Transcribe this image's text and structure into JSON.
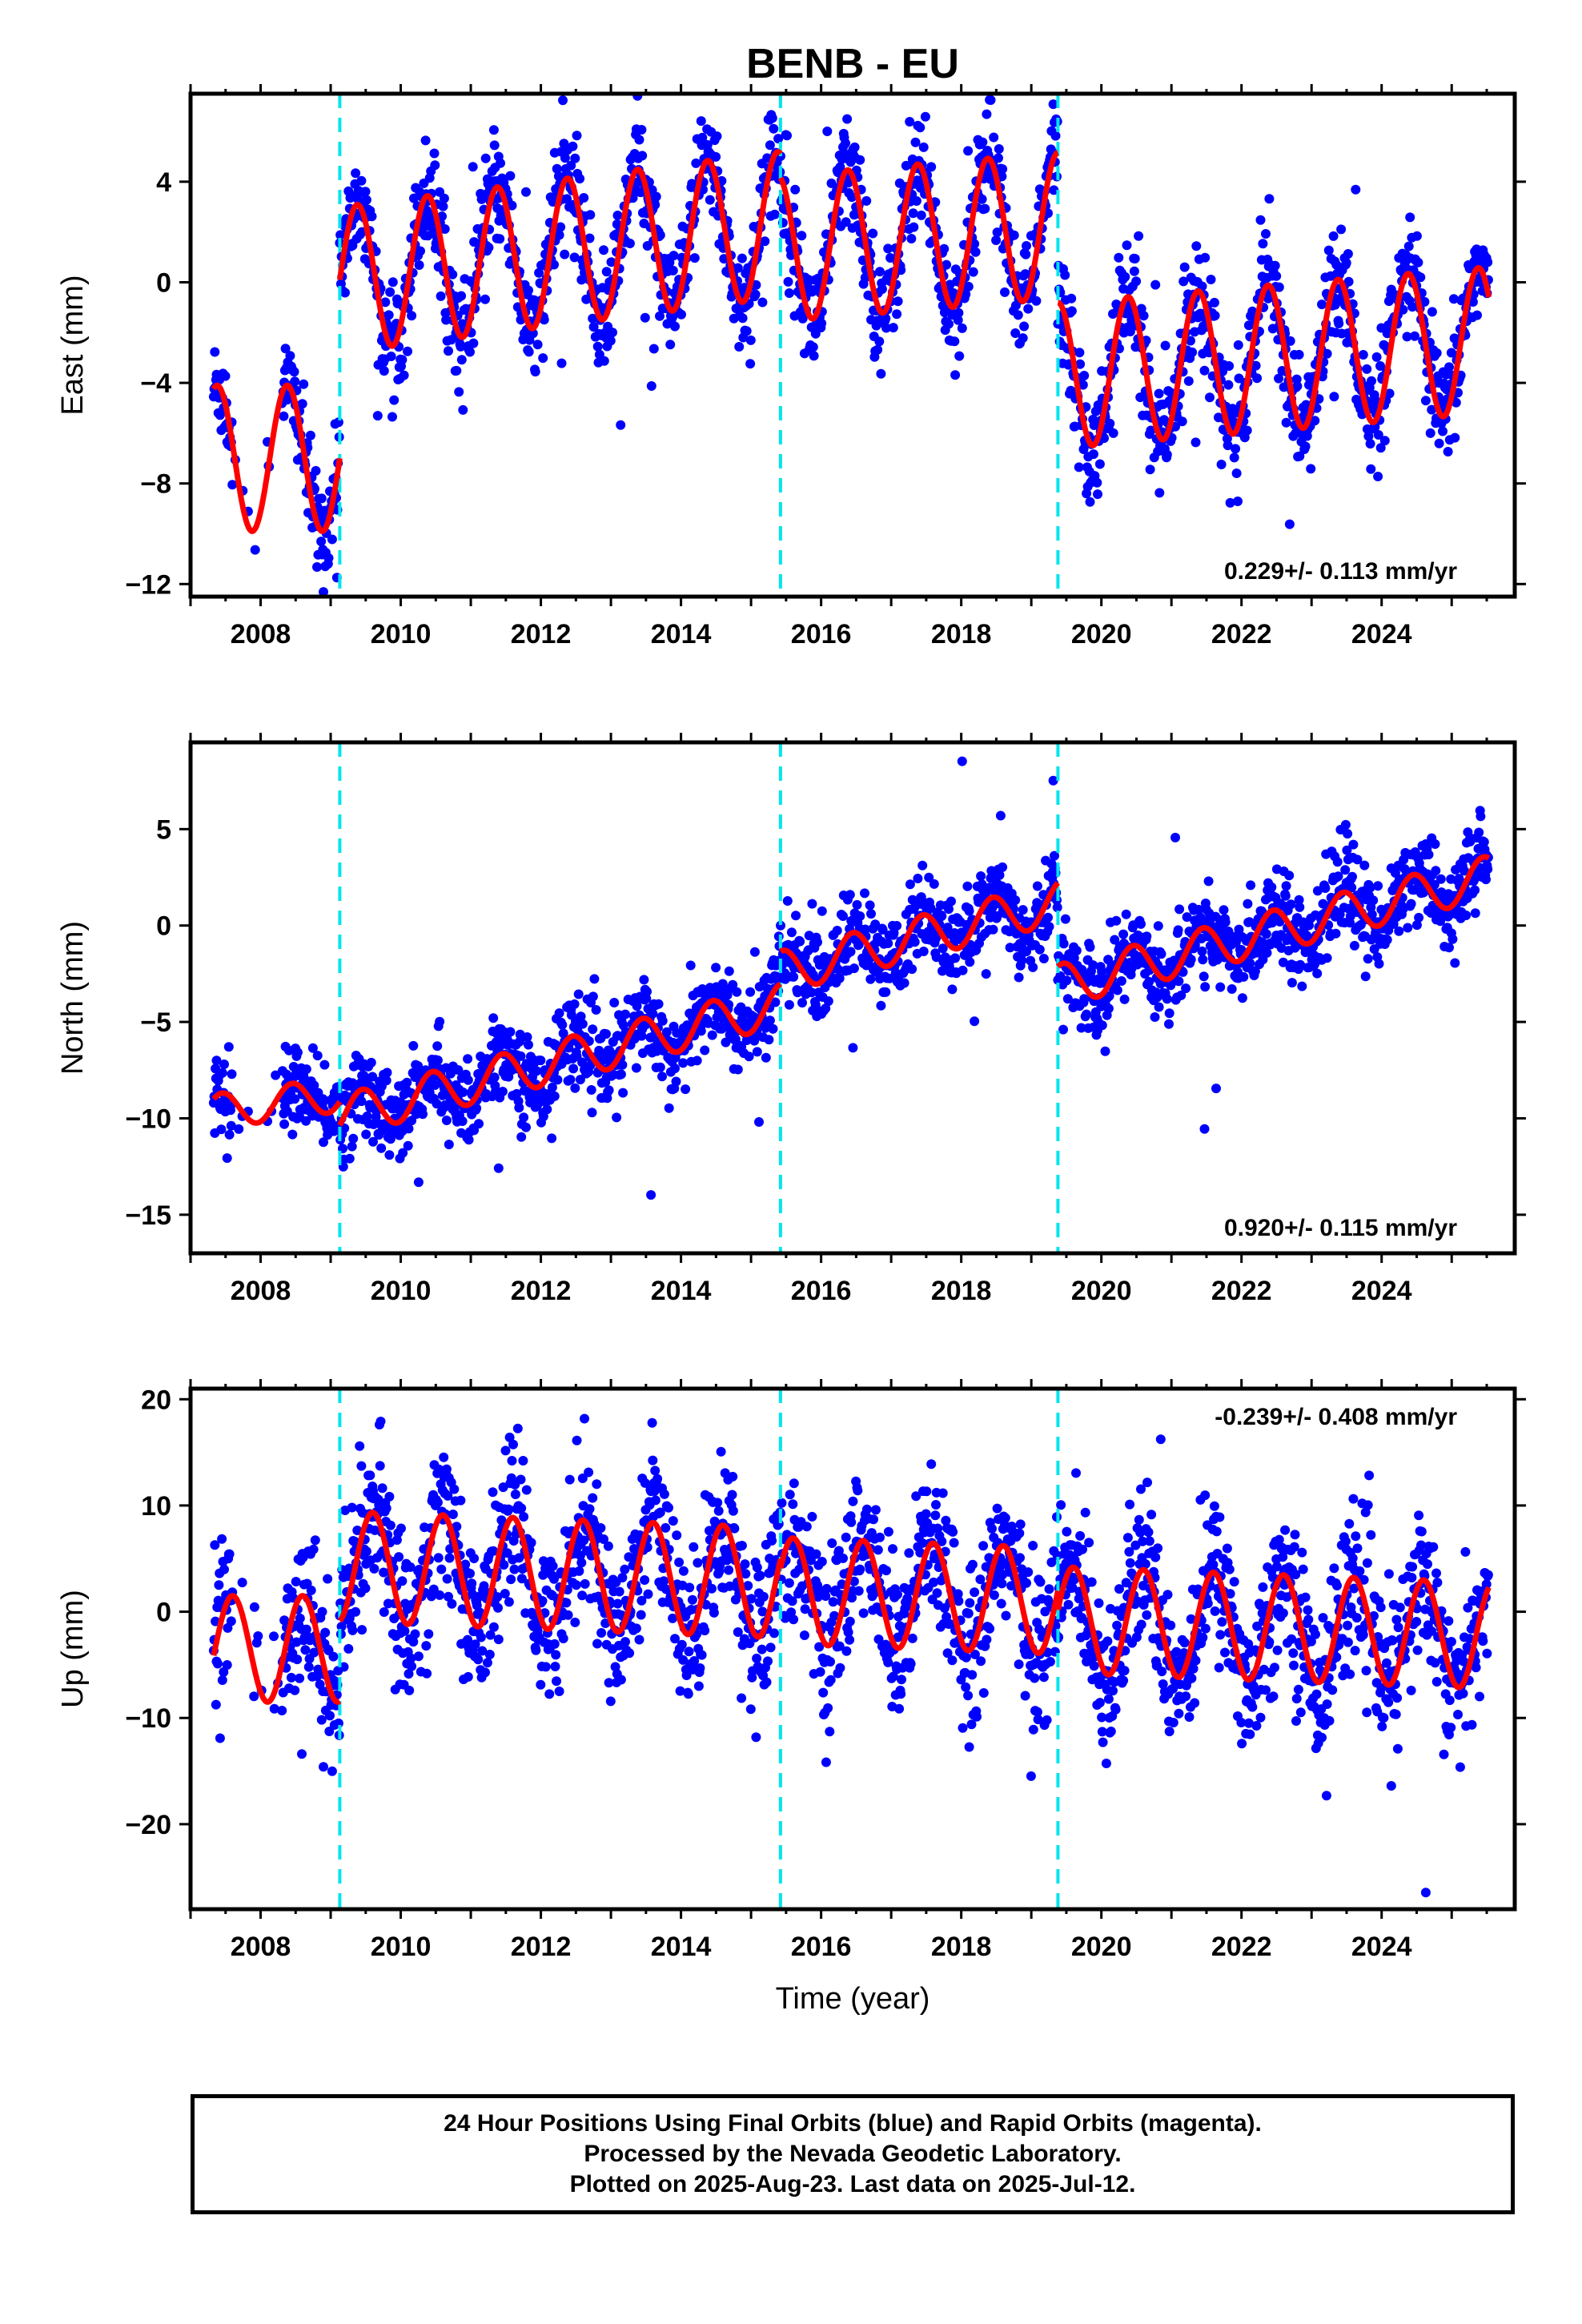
{
  "title": "BENB - EU",
  "colors": {
    "data_points": "#0000ff",
    "model_fit": "#ff0000",
    "offsets": "#00e5ee",
    "frame": "#000000"
  },
  "xaxis": {
    "label": "Time (year)",
    "range": [
      2007.0,
      2025.9
    ],
    "ticks": [
      "2008",
      "2010",
      "2012",
      "2014",
      "2016",
      "2018",
      "2020",
      "2022",
      "2024"
    ]
  },
  "offset_dates": [
    2009.13,
    2015.42,
    2019.38
  ],
  "caption": {
    "lines": [
      "24 Hour Positions Using Final Orbits (blue) and Rapid Orbits (magenta).",
      "Processed by the Nevada Geodetic Laboratory.",
      "Plotted on 2025-Aug-23. Last data on 2025-Jul-12."
    ]
  },
  "chart_data": [
    {
      "type": "scatter",
      "component": "east",
      "ylabel": "East (mm)",
      "ylim": [
        -12.5,
        7.5
      ],
      "yticks": [
        -12,
        -8,
        -4,
        0,
        4
      ],
      "ytick_labels": [
        "−12",
        "−8",
        "−4",
        "0",
        "4"
      ],
      "rate_text": "0.229+/- 0.113 mm/yr",
      "rate_position": "bottom-right",
      "data_span": [
        2007.33,
        2025.53
      ],
      "model": {
        "segments": [
          {
            "start": 2007.33,
            "end": 2009.13,
            "mean": -7.0,
            "amp": 2.9,
            "phase": 0.38,
            "noise": 1.0
          },
          {
            "start": 2009.13,
            "end": 2015.42,
            "mean": 1.2,
            "trend": 0.35,
            "amp": 2.9,
            "phase": 0.38,
            "noise": 1.1
          },
          {
            "start": 2015.42,
            "end": 2019.38,
            "mean": 1.8,
            "trend": 0.23,
            "amp": 2.9,
            "phase": 0.38,
            "noise": 1.1
          },
          {
            "start": 2019.38,
            "end": 2025.53,
            "mean": -3.0,
            "trend": 0.23,
            "amp": 2.9,
            "phase": 0.38,
            "noise": 1.1
          }
        ]
      }
    },
    {
      "type": "scatter",
      "component": "north",
      "ylabel": "North (mm)",
      "ylim": [
        -17,
        9.5
      ],
      "yticks": [
        -15,
        -10,
        -5,
        0,
        5
      ],
      "ytick_labels": [
        "−15",
        "−10",
        "−5",
        "0",
        "5"
      ],
      "rate_text": "0.920+/- 0.115 mm/yr",
      "rate_position": "bottom-right",
      "data_span": [
        2007.33,
        2025.53
      ],
      "model": {
        "segments": [
          {
            "start": 2007.33,
            "end": 2009.13,
            "mean": -9.2,
            "trend": 0.5,
            "amp": 0.9,
            "phase": 0.45,
            "noise": 1.0
          },
          {
            "start": 2009.13,
            "end": 2015.42,
            "mean": -7.0,
            "trend": 0.92,
            "amp": 1.1,
            "phase": 0.45,
            "noise": 1.1
          },
          {
            "start": 2015.42,
            "end": 2019.38,
            "mean": -0.6,
            "trend": 0.92,
            "amp": 1.1,
            "phase": 0.45,
            "noise": 1.1
          },
          {
            "start": 2019.38,
            "end": 2025.53,
            "mean": -0.3,
            "trend": 0.92,
            "amp": 1.1,
            "phase": 0.45,
            "noise": 1.1
          }
        ]
      }
    },
    {
      "type": "scatter",
      "component": "up",
      "ylabel": "Up (mm)",
      "ylim": [
        -28,
        21
      ],
      "yticks": [
        -20,
        -10,
        0,
        10,
        20
      ],
      "ytick_labels": [
        "−20",
        "−10",
        "0",
        "10",
        "20"
      ],
      "rate_text": "-0.239+/- 0.408 mm/yr",
      "rate_position": "top-right",
      "data_span": [
        2007.33,
        2025.53
      ],
      "model": {
        "segments": [
          {
            "start": 2007.33,
            "end": 2009.13,
            "mean": -3.5,
            "amp": 5.0,
            "phase": 0.6,
            "noise": 3.5
          },
          {
            "start": 2009.13,
            "end": 2015.42,
            "mean": 3.5,
            "trend": -0.24,
            "amp": 5.2,
            "phase": 0.6,
            "noise": 3.6
          },
          {
            "start": 2015.42,
            "end": 2019.38,
            "mean": 1.5,
            "trend": -0.24,
            "amp": 5.0,
            "phase": 0.6,
            "noise": 3.8
          },
          {
            "start": 2019.38,
            "end": 2025.53,
            "mean": -1.5,
            "trend": -0.24,
            "amp": 5.0,
            "phase": 0.6,
            "noise": 3.6
          }
        ]
      }
    }
  ]
}
